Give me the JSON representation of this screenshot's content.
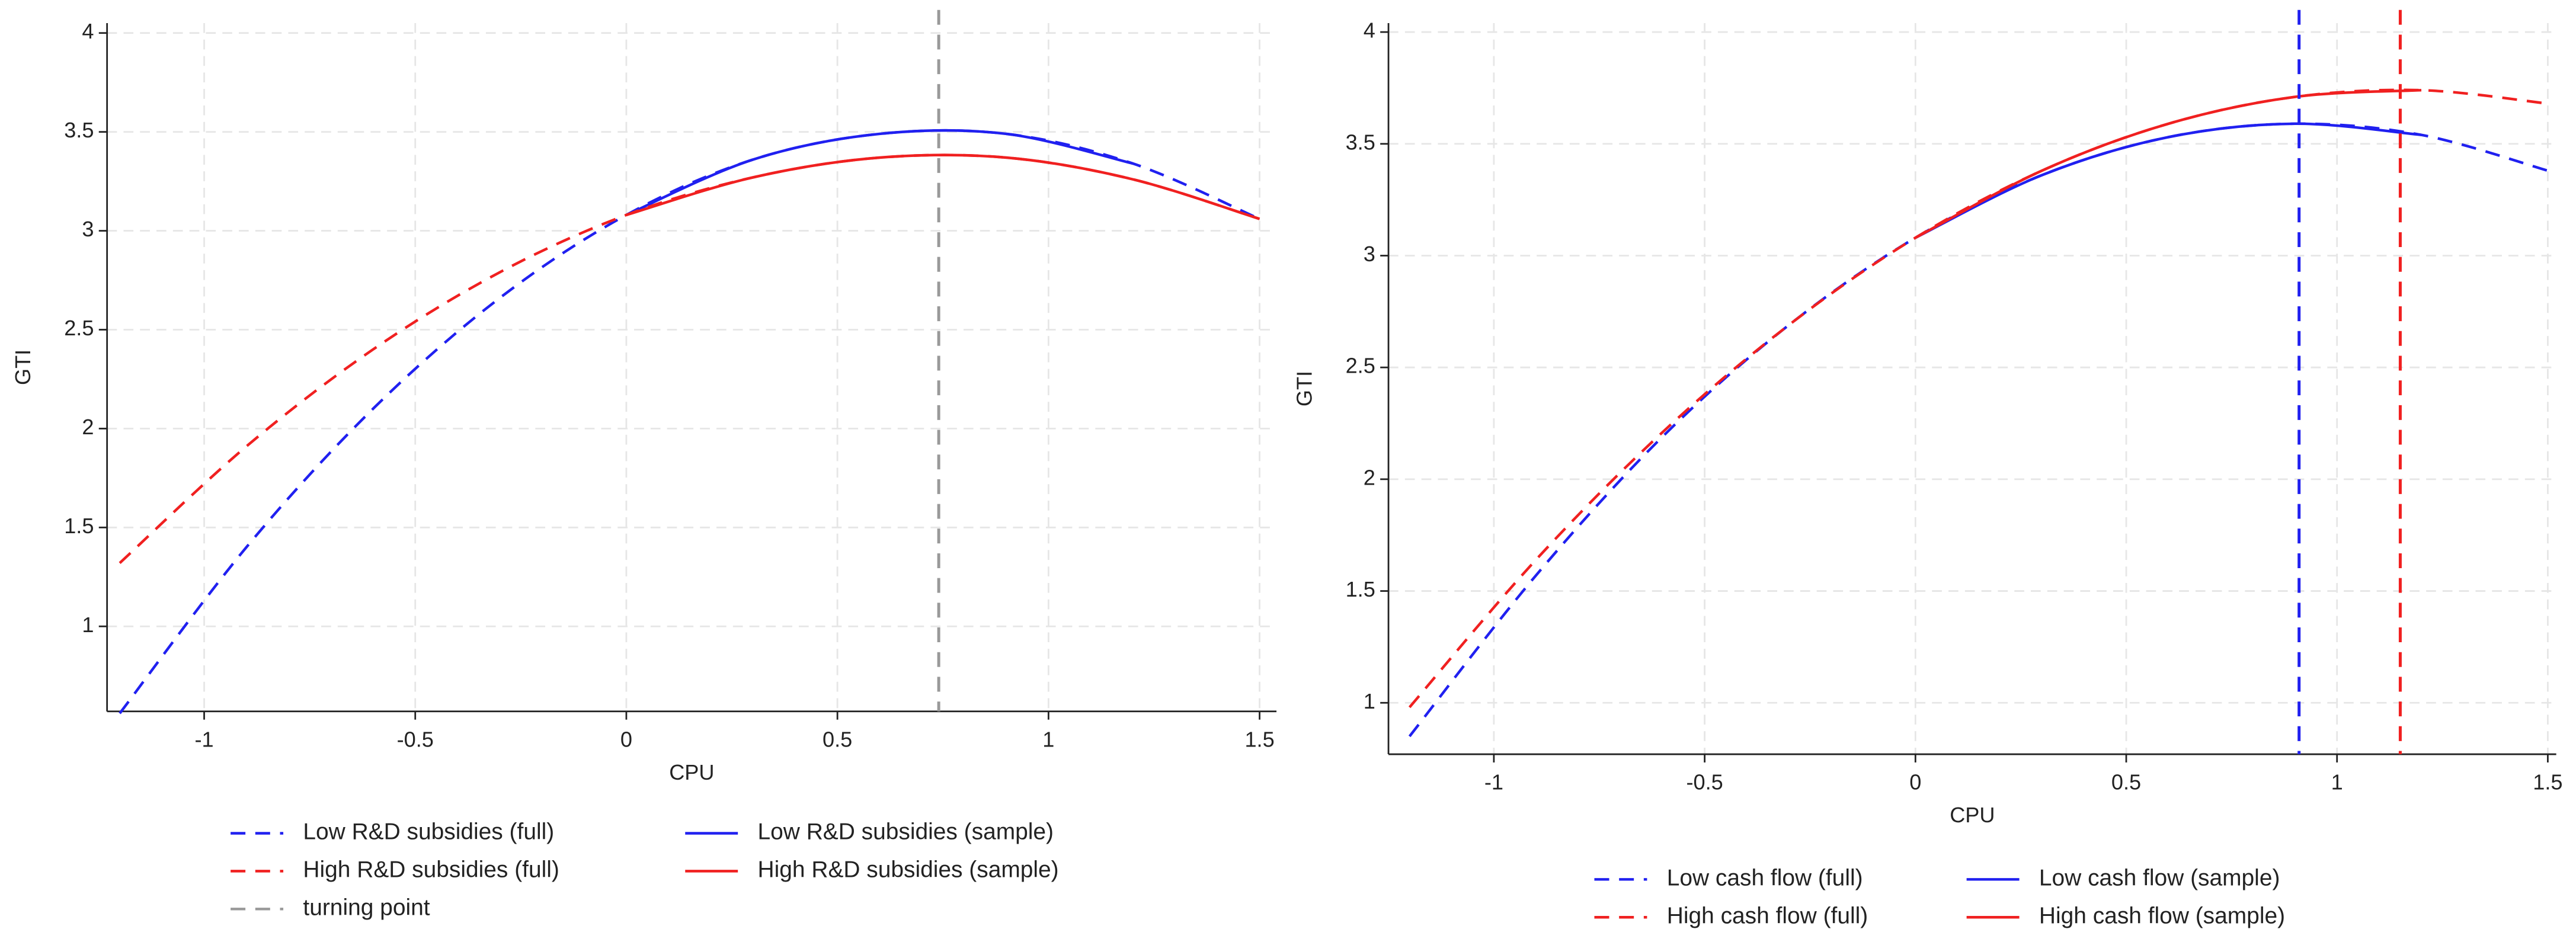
{
  "chart_data": [
    {
      "type": "line",
      "x_label": "CPU",
      "y_label": "GTI",
      "xlim": [
        -1.23,
        1.54
      ],
      "ylim": [
        0.57,
        4.05
      ],
      "xticks": [
        -1,
        -0.5,
        0,
        0.5,
        1,
        1.5
      ],
      "yticks": [
        1,
        1.5,
        2,
        2.5,
        3,
        3.5,
        4
      ],
      "grid": true,
      "series": [
        {
          "name": "Low R&D subsidies (full)",
          "color": "#2020f0",
          "dashed": true,
          "x": [
            -1.2,
            -0.9,
            -0.6,
            -0.3,
            0,
            0.3,
            0.6,
            0.9,
            1.2,
            1.5
          ],
          "values": [
            0.56,
            1.4,
            2.1,
            2.66,
            3.08,
            3.36,
            3.49,
            3.49,
            3.34,
            3.06
          ]
        },
        {
          "name": "Low R&D subsidies (sample)",
          "color": "#2020f0",
          "dashed": false,
          "x": [
            0,
            0.3,
            0.6,
            0.9,
            1.2
          ],
          "values": [
            3.08,
            3.36,
            3.49,
            3.49,
            3.34
          ]
        },
        {
          "name": "High R&D subsidies (full)",
          "color": "#f02020",
          "dashed": true,
          "x": [
            -1.2,
            -0.9,
            -0.6,
            -0.3,
            0,
            0.3,
            0.6,
            0.9,
            1.2,
            1.5
          ],
          "values": [
            1.32,
            1.91,
            2.4,
            2.79,
            3.08,
            3.27,
            3.37,
            3.37,
            3.26,
            3.06
          ]
        },
        {
          "name": "High R&D subsidies (sample)",
          "color": "#f02020",
          "dashed": false,
          "x": [
            0,
            0.3,
            0.6,
            0.9,
            1.2,
            1.5
          ],
          "values": [
            3.08,
            3.27,
            3.37,
            3.37,
            3.26,
            3.06
          ]
        }
      ],
      "vlines": [
        {
          "name": "turning point",
          "x": 0.74,
          "color": "#999999"
        }
      ]
    },
    {
      "type": "line",
      "x_label": "CPU",
      "y_label": "GTI",
      "xlim": [
        -1.25,
        1.52
      ],
      "ylim": [
        0.77,
        4.04
      ],
      "xticks": [
        -1,
        -0.5,
        0,
        0.5,
        1,
        1.5
      ],
      "yticks": [
        1,
        1.5,
        2,
        2.5,
        3,
        3.5,
        4
      ],
      "grid": true,
      "series": [
        {
          "name": "Low cash flow (full)",
          "color": "#2020f0",
          "dashed": true,
          "x": [
            -1.2,
            -0.9,
            -0.6,
            -0.3,
            0,
            0.3,
            0.6,
            0.9,
            1.2,
            1.5
          ],
          "values": [
            0.85,
            1.57,
            2.19,
            2.69,
            3.08,
            3.36,
            3.53,
            3.59,
            3.54,
            3.38
          ]
        },
        {
          "name": "Low cash flow (sample)",
          "color": "#2020f0",
          "dashed": false,
          "x": [
            0,
            0.3,
            0.6,
            0.9,
            1.2
          ],
          "values": [
            3.08,
            3.36,
            3.53,
            3.59,
            3.54
          ]
        },
        {
          "name": "High cash flow (full)",
          "color": "#f02020",
          "dashed": true,
          "x": [
            -1.2,
            -0.9,
            -0.6,
            -0.3,
            0,
            0.3,
            0.6,
            0.9,
            1.2,
            1.5
          ],
          "values": [
            0.98,
            1.64,
            2.21,
            2.69,
            3.08,
            3.38,
            3.59,
            3.71,
            3.74,
            3.68
          ]
        },
        {
          "name": "High cash flow (sample)",
          "color": "#f02020",
          "dashed": false,
          "x": [
            0,
            0.3,
            0.6,
            0.9,
            1.2
          ],
          "values": [
            3.08,
            3.38,
            3.59,
            3.71,
            3.74
          ]
        }
      ],
      "vlines": [
        {
          "x": 0.91,
          "color": "#2020f0"
        },
        {
          "x": 1.15,
          "color": "#f02020"
        }
      ]
    }
  ]
}
